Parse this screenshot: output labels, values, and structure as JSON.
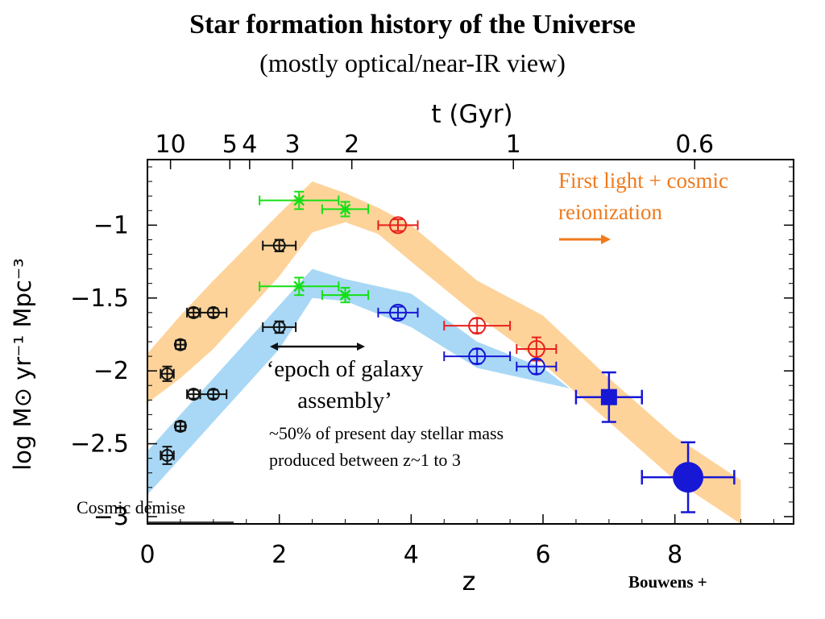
{
  "title": "Star formation history of the Universe",
  "subtitle": "(mostly optical/near-IR view)",
  "credit": "Bouwens +",
  "colors": {
    "orange_band": "#fdd39a",
    "blue_band": "#a8d8f5",
    "green": "#14e014",
    "red": "#e8201a",
    "blue": "#1717d6",
    "black": "#111111",
    "annotation_orange": "#f07a1c"
  },
  "chart_data": {
    "type": "scatter",
    "xlabel": "z",
    "ylabel": "log M⊙ yr⁻¹ Mpc⁻³",
    "top_axis_label": "t (Gyr)",
    "xlim": [
      0,
      9.8
    ],
    "ylim": [
      -3.05,
      -0.55
    ],
    "x_ticks": [
      0,
      2,
      4,
      6,
      8
    ],
    "x_tick_labels": [
      "0",
      "2",
      "4",
      "6",
      "8"
    ],
    "y_ticks": [
      -1,
      -1.5,
      -2,
      -2.5,
      -3
    ],
    "y_tick_labels": [
      "−1",
      "−1.5",
      "−2",
      "−2.5",
      "−3"
    ],
    "top_ticks": [
      {
        "label": "10",
        "z": 0.35
      },
      {
        "label": "5",
        "z": 1.25
      },
      {
        "label": "4",
        "z": 1.55
      },
      {
        "label": "3",
        "z": 2.2
      },
      {
        "label": "2",
        "z": 3.1
      },
      {
        "label": "1",
        "z": 5.55
      },
      {
        "label": "0.6",
        "z": 8.3
      }
    ],
    "bands": [
      {
        "name": "dust-corrected",
        "color": "#fdd39a",
        "upper": [
          [
            0,
            -1.88
          ],
          [
            0.5,
            -1.62
          ],
          [
            1,
            -1.38
          ],
          [
            1.5,
            -1.15
          ],
          [
            2,
            -0.92
          ],
          [
            2.5,
            -0.7
          ],
          [
            3,
            -0.78
          ],
          [
            3.5,
            -0.88
          ],
          [
            4,
            -1.0
          ],
          [
            5,
            -1.38
          ],
          [
            6,
            -1.62
          ],
          [
            7,
            -2.05
          ],
          [
            8,
            -2.45
          ],
          [
            9,
            -2.75
          ]
        ],
        "lower": [
          [
            9,
            -3.05
          ],
          [
            8,
            -2.75
          ],
          [
            7,
            -2.35
          ],
          [
            6,
            -1.95
          ],
          [
            5,
            -1.62
          ],
          [
            4,
            -1.25
          ],
          [
            3.5,
            -1.06
          ],
          [
            3,
            -0.98
          ],
          [
            2.5,
            -1.05
          ],
          [
            2,
            -1.35
          ],
          [
            1.5,
            -1.6
          ],
          [
            1,
            -1.85
          ],
          [
            0.5,
            -2.05
          ],
          [
            0,
            -2.22
          ]
        ]
      },
      {
        "name": "uncorrected",
        "color": "#a8d8f5",
        "upper": [
          [
            0,
            -2.55
          ],
          [
            0.5,
            -2.3
          ],
          [
            1,
            -2.05
          ],
          [
            1.5,
            -1.8
          ],
          [
            2,
            -1.55
          ],
          [
            2.5,
            -1.3
          ],
          [
            3,
            -1.37
          ],
          [
            4,
            -1.47
          ],
          [
            5,
            -1.8
          ],
          [
            6,
            -1.98
          ],
          [
            6.4,
            -2.12
          ]
        ],
        "lower": [
          [
            6.4,
            -2.12
          ],
          [
            6,
            -2.08
          ],
          [
            5,
            -1.98
          ],
          [
            4,
            -1.7
          ],
          [
            3,
            -1.52
          ],
          [
            2.5,
            -1.5
          ],
          [
            2,
            -1.85
          ],
          [
            1.5,
            -2.1
          ],
          [
            1,
            -2.35
          ],
          [
            0.5,
            -2.6
          ],
          [
            0,
            -2.85
          ]
        ]
      }
    ],
    "series": [
      {
        "name": "black-upper",
        "color": "#111111",
        "marker": "circle-cross",
        "points": [
          {
            "x": 0.3,
            "y": -2.02,
            "xerr": 0.1,
            "yerr": 0.05
          },
          {
            "x": 0.5,
            "y": -1.82,
            "xerr": 0.07,
            "yerr": 0.03
          },
          {
            "x": 0.7,
            "y": -1.6,
            "xerr": 0.1,
            "yerr": 0.03
          },
          {
            "x": 1.0,
            "y": -1.6,
            "xerr": 0.2,
            "yerr": 0.03
          },
          {
            "x": 2.0,
            "y": -1.14,
            "xerr": 0.25,
            "yerr": 0.04
          }
        ]
      },
      {
        "name": "black-lower",
        "color": "#111111",
        "marker": "circle-cross",
        "points": [
          {
            "x": 0.3,
            "y": -2.58,
            "xerr": 0.1,
            "yerr": 0.06
          },
          {
            "x": 0.5,
            "y": -2.38,
            "xerr": 0.07,
            "yerr": 0.03
          },
          {
            "x": 0.7,
            "y": -2.16,
            "xerr": 0.1,
            "yerr": 0.03
          },
          {
            "x": 1.0,
            "y": -2.16,
            "xerr": 0.2,
            "yerr": 0.03
          },
          {
            "x": 2.0,
            "y": -1.7,
            "xerr": 0.25,
            "yerr": 0.04
          }
        ]
      },
      {
        "name": "green",
        "color": "#14e014",
        "marker": "star",
        "points": [
          {
            "x": 2.3,
            "y": -0.83,
            "xerr": 0.6,
            "yerr": 0.06
          },
          {
            "x": 3.0,
            "y": -0.89,
            "xerr": 0.35,
            "yerr": 0.05
          },
          {
            "x": 2.3,
            "y": -1.42,
            "xerr": 0.6,
            "yerr": 0.06
          },
          {
            "x": 3.0,
            "y": -1.48,
            "xerr": 0.35,
            "yerr": 0.05
          }
        ]
      },
      {
        "name": "red",
        "color": "#e8201a",
        "marker": "circle-open",
        "points": [
          {
            "x": 3.8,
            "y": -1.0,
            "xerr": 0.3,
            "yerr": 0.04
          },
          {
            "x": 5.0,
            "y": -1.69,
            "xerr": 0.5,
            "yerr": 0.05
          },
          {
            "x": 5.9,
            "y": -1.85,
            "xerr": 0.3,
            "yerr": 0.08
          }
        ]
      },
      {
        "name": "blue",
        "color": "#1717d6",
        "marker": "circle-open",
        "points": [
          {
            "x": 3.8,
            "y": -1.6,
            "xerr": 0.3,
            "yerr": 0.04
          },
          {
            "x": 5.0,
            "y": -1.9,
            "xerr": 0.5,
            "yerr": 0.05
          },
          {
            "x": 5.9,
            "y": -1.97,
            "xerr": 0.3,
            "yerr": 0.05
          }
        ]
      },
      {
        "name": "blue-filled",
        "color": "#1717d6",
        "marker": "filled",
        "points": [
          {
            "x": 7.0,
            "y": -2.18,
            "xerr": 0.5,
            "yerr": 0.17,
            "shape": "square"
          },
          {
            "x": 8.2,
            "y": -2.73,
            "xerr": 0.7,
            "yerr": 0.24,
            "shape": "circle"
          }
        ]
      }
    ],
    "annotations": {
      "first_light": "First light + cosmic",
      "reionization": "reionization",
      "epoch_line1": "‘epoch of galaxy",
      "epoch_line2": "assembly’",
      "stellar_mass_line1": "~50% of present day stellar mass",
      "stellar_mass_line2": "produced between z~1 to 3",
      "cosmic_demise": "Cosmic demise"
    }
  }
}
